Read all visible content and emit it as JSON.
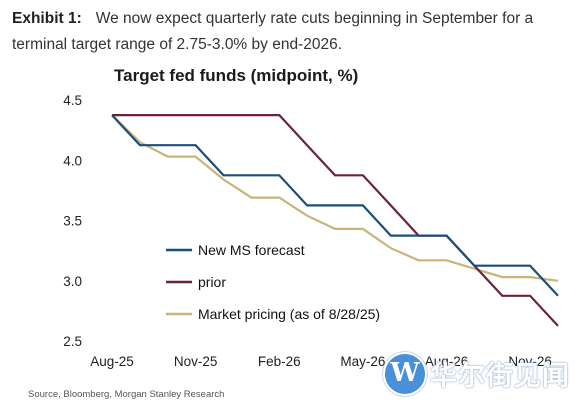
{
  "exhibit": {
    "label": "Exhibit 1:",
    "text": "We now expect quarterly rate cuts beginning in September for a terminal target range of 2.75-3.0% by end-2026."
  },
  "source": "Source, Bloomberg, Morgan Stanley Research",
  "watermark": {
    "logo_letter": "W",
    "text": "华尔街见闻"
  },
  "chart_data": {
    "type": "line",
    "title": "Target fed funds (midpoint, %)",
    "xlabel": "",
    "ylabel": "",
    "x": [
      "Aug-25",
      "Sep-25",
      "Oct-25",
      "Nov-25",
      "Dec-25",
      "Jan-26",
      "Feb-26",
      "Mar-26",
      "Apr-26",
      "May-26",
      "Jun-26",
      "Jul-26",
      "Aug-26",
      "Sep-26",
      "Oct-26",
      "Nov-26",
      "Dec-26"
    ],
    "x_tick_labels": [
      "Aug-25",
      "Nov-25",
      "Feb-26",
      "May-26",
      "Aug-26",
      "Nov-26"
    ],
    "ylim": [
      2.5,
      4.5
    ],
    "y_ticks": [
      "2.5",
      "3.0",
      "3.5",
      "4.0",
      "4.5"
    ],
    "grid": false,
    "legend_position": "center-left",
    "series": [
      {
        "name": "New MS forecast",
        "color": "#1a4f7a",
        "x": [
          "Aug-25",
          "Sep-25",
          "Oct-25",
          "Oct-25",
          "Nov-25",
          "Dec-25",
          "Dec-25",
          "Feb-26",
          "Mar-26",
          "Mar-26",
          "May-26",
          "Jun-26",
          "Jul-26",
          "Aug-26",
          "Sep-26",
          "Oct-26",
          "Nov-26",
          "Dec-26"
        ],
        "values": [
          4.375,
          4.125,
          4.125,
          4.125,
          4.125,
          3.875,
          3.875,
          3.875,
          3.625,
          3.625,
          3.625,
          3.375,
          3.375,
          3.375,
          3.125,
          3.125,
          3.125,
          2.875
        ]
      },
      {
        "name": "prior",
        "color": "#6b2338",
        "x": [
          "Aug-25",
          "Feb-26",
          "Mar-26",
          "Apr-26",
          "May-26",
          "Jun-26",
          "Jul-26",
          "Aug-26",
          "Sep-26",
          "Oct-26",
          "Nov-26",
          "Dec-26"
        ],
        "values": [
          4.375,
          4.375,
          4.125,
          3.875,
          3.875,
          3.625,
          3.375,
          3.375,
          3.125,
          2.875,
          2.875,
          2.625
        ]
      },
      {
        "name": "Market pricing (as of 8/28/25)",
        "color": "#c9b478",
        "x": [
          "Aug-25",
          "Sep-25",
          "Oct-25",
          "Nov-25",
          "Dec-25",
          "Jan-26",
          "Feb-26",
          "Mar-26",
          "Apr-26",
          "May-26",
          "Jun-26",
          "Jul-26",
          "Aug-26",
          "Sep-26",
          "Oct-26",
          "Nov-26",
          "Dec-26"
        ],
        "values": [
          4.375,
          4.15,
          4.03,
          4.03,
          3.84,
          3.69,
          3.69,
          3.54,
          3.43,
          3.43,
          3.27,
          3.17,
          3.17,
          3.1,
          3.03,
          3.03,
          3.0
        ]
      }
    ]
  }
}
